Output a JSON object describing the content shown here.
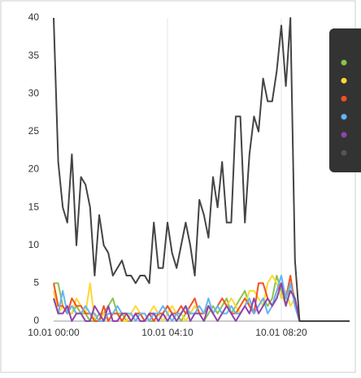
{
  "chart_data": {
    "type": "line",
    "categories": [
      "10.01 00:00",
      null,
      null,
      null,
      null,
      null,
      null,
      null,
      null,
      null,
      null,
      null,
      null,
      null,
      null,
      null,
      null,
      null,
      null,
      null,
      null,
      null,
      null,
      null,
      null,
      "10.01 04:10",
      null,
      null,
      null,
      null,
      null,
      null,
      null,
      null,
      null,
      null,
      null,
      null,
      null,
      null,
      null,
      null,
      null,
      null,
      null,
      null,
      null,
      null,
      null,
      null,
      "10.01 08:20",
      null,
      null,
      null,
      null,
      null,
      null,
      null,
      null,
      null,
      null,
      null,
      null,
      null,
      null,
      null
    ],
    "series": [
      {
        "color": "#8bc34a",
        "values": [
          5,
          5,
          2,
          1,
          1,
          2,
          1,
          1,
          0,
          0,
          1,
          1,
          2,
          3,
          1,
          1,
          0,
          0,
          1,
          1,
          1,
          0,
          0,
          1,
          1,
          2,
          1,
          1,
          0,
          1,
          1,
          2,
          1,
          0,
          1,
          2,
          1,
          2,
          3,
          1,
          2,
          3,
          4,
          2,
          1,
          2,
          3,
          2,
          3,
          6,
          4,
          2,
          5,
          3,
          0,
          0,
          0,
          0,
          0,
          0,
          0,
          0,
          0,
          0,
          0,
          0
        ]
      },
      {
        "color": "#fdd835",
        "values": [
          4,
          1,
          2,
          1,
          1,
          3,
          2,
          1,
          5,
          0,
          0,
          1,
          0,
          1,
          1,
          0,
          0,
          1,
          2,
          1,
          0,
          1,
          2,
          1,
          0,
          1,
          2,
          1,
          1,
          0,
          1,
          2,
          1,
          1,
          2,
          1,
          0,
          1,
          2,
          3,
          2,
          1,
          2,
          4,
          4,
          3,
          2,
          5,
          6,
          5,
          3,
          4,
          2,
          3,
          0,
          0,
          0,
          0,
          0,
          0,
          0,
          0,
          0,
          0,
          0,
          0
        ]
      },
      {
        "color": "#f4511e",
        "values": [
          5,
          2,
          2,
          1,
          3,
          2,
          2,
          1,
          1,
          0,
          0,
          2,
          0,
          1,
          1,
          0,
          1,
          0,
          1,
          1,
          0,
          1,
          0,
          1,
          1,
          2,
          1,
          1,
          2,
          1,
          2,
          3,
          1,
          1,
          2,
          1,
          2,
          3,
          2,
          1,
          1,
          2,
          3,
          2,
          1,
          5,
          5,
          3,
          2,
          4,
          5,
          3,
          6,
          2,
          0,
          0,
          0,
          0,
          0,
          0,
          0,
          0,
          0,
          0,
          0,
          0
        ]
      },
      {
        "color": "#64b5f6",
        "values": [
          3,
          1,
          4,
          1,
          2,
          1,
          1,
          2,
          1,
          1,
          0,
          0,
          1,
          1,
          2,
          1,
          1,
          1,
          0,
          1,
          1,
          0,
          1,
          1,
          2,
          1,
          0,
          1,
          1,
          2,
          1,
          1,
          2,
          1,
          3,
          1,
          2,
          1,
          1,
          2,
          1,
          1,
          2,
          3,
          1,
          2,
          3,
          1,
          2,
          4,
          6,
          3,
          5,
          2,
          0,
          0,
          0,
          0,
          0,
          0,
          0,
          0,
          0,
          0,
          0,
          0
        ]
      },
      {
        "color": "#8e44ad",
        "values": [
          3,
          1,
          1,
          2,
          0,
          1,
          1,
          0,
          0,
          2,
          1,
          0,
          2,
          0,
          0,
          1,
          1,
          0,
          1,
          0,
          0,
          1,
          1,
          0,
          1,
          0,
          1,
          0,
          1,
          2,
          0,
          1,
          1,
          0,
          2,
          1,
          0,
          1,
          2,
          1,
          0,
          1,
          2,
          1,
          3,
          1,
          2,
          3,
          2,
          3,
          5,
          2,
          4,
          3,
          0,
          0,
          0,
          0,
          0,
          0,
          0,
          0,
          0,
          0,
          0,
          0
        ]
      },
      {
        "color": "#444444",
        "values": [
          40,
          21,
          15,
          13,
          22,
          10,
          19,
          18,
          15,
          6,
          14,
          10,
          9,
          6,
          7,
          8,
          6,
          6,
          5,
          6,
          6,
          5,
          13,
          7,
          7,
          13,
          9,
          7,
          10,
          13,
          10,
          6,
          16,
          14,
          11,
          19,
          15,
          21,
          13,
          13,
          27,
          27,
          13,
          22,
          27,
          25,
          32,
          29,
          29,
          33,
          39,
          31,
          40,
          8,
          0,
          0,
          0,
          0,
          0,
          0,
          0,
          0,
          0,
          0,
          0,
          0
        ]
      }
    ],
    "ylim": [
      0,
      40
    ],
    "yticks": [
      0,
      5,
      10,
      15,
      20,
      25,
      30,
      35,
      40
    ],
    "grid": true
  }
}
